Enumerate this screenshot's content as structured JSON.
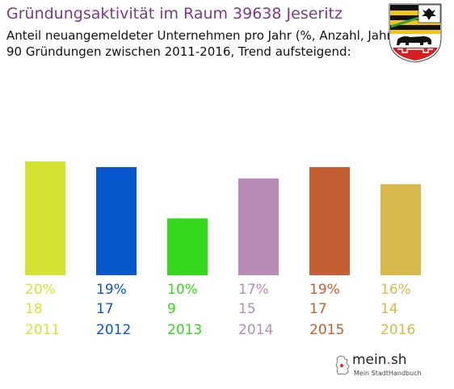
{
  "header": {
    "title": "Gründungsaktivität im Raum 39638 Jeseritz",
    "subtitle_line1": "Anteil neuangemeldeter Unternehmen pro Jahr (%, Anzahl, Jahr)",
    "subtitle_line2": "90 Gründungen zwischen 2011-2016, Trend aufsteigend:"
  },
  "brand": {
    "name_main": "mein",
    "name_dot": ".",
    "name_tld": "sh",
    "tagline": "Mein StadtHandbuch",
    "icon": "germany-map-icon"
  },
  "crest": {
    "icon": "saxony-anhalt-coat-of-arms-icon"
  },
  "chart_data": {
    "type": "bar",
    "categories": [
      "2011",
      "2012",
      "2013",
      "2014",
      "2015",
      "2016"
    ],
    "values": [
      20,
      19,
      10,
      17,
      19,
      16
    ],
    "percent_labels": [
      "20%",
      "19%",
      "10%",
      "17%",
      "19%",
      "16%"
    ],
    "counts": [
      18,
      17,
      9,
      15,
      17,
      14
    ],
    "colors": [
      "#d5e332",
      "#0857cd",
      "#36d81d",
      "#b98ab4",
      "#c55e33",
      "#d7b84b"
    ],
    "title": "Gründungsaktivität im Raum 39638 Jeseritz",
    "ylim": [
      0,
      20
    ],
    "grid": false
  }
}
